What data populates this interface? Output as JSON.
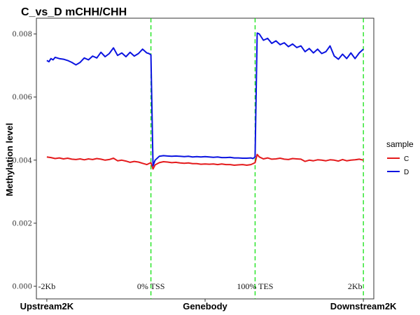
{
  "chart_data": {
    "type": "line",
    "title": "C_vs_D  mCHH/CHH",
    "ylabel": "Methylation level",
    "xlabel": "",
    "ylim": [
      -0.0004,
      0.0085
    ],
    "xlim": [
      -5,
      157
    ],
    "yticks": [
      "0.000",
      "0.002",
      "0.004",
      "0.006",
      "0.008"
    ],
    "ytick_values": [
      0,
      0.002,
      0.004,
      0.006,
      0.008
    ],
    "region_labels": [
      {
        "text": "Upstream2K",
        "x": 0
      },
      {
        "text": "Genebody",
        "x": 76
      },
      {
        "text": "Downstream2K",
        "x": 152
      }
    ],
    "position_labels": [
      {
        "text": "-2Kb",
        "x": 0
      },
      {
        "text": "0% TSS",
        "x": 50
      },
      {
        "text": "100% TES",
        "x": 100
      },
      {
        "text": "2Kb",
        "x": 148
      }
    ],
    "vlines_x": [
      50,
      100,
      152
    ],
    "vline_color": "#00e000",
    "legend": {
      "title": "sample",
      "placement": "right"
    },
    "series": [
      {
        "name": "C",
        "color": "#e41a1c",
        "x": [
          0,
          2,
          4,
          6,
          8,
          10,
          12,
          14,
          16,
          18,
          20,
          22,
          24,
          26,
          28,
          30,
          32,
          34,
          36,
          38,
          40,
          42,
          44,
          46,
          48,
          50,
          51,
          52,
          54,
          56,
          58,
          60,
          62,
          64,
          66,
          68,
          70,
          72,
          74,
          76,
          78,
          80,
          82,
          84,
          86,
          88,
          90,
          92,
          94,
          96,
          98,
          100,
          101,
          102,
          104,
          106,
          108,
          110,
          112,
          114,
          116,
          118,
          120,
          122,
          124,
          126,
          128,
          130,
          132,
          134,
          136,
          138,
          140,
          142,
          144,
          146,
          148,
          150,
          152
        ],
        "values": [
          0.0041,
          0.00408,
          0.00405,
          0.00407,
          0.00404,
          0.00406,
          0.00403,
          0.00402,
          0.00404,
          0.00401,
          0.00404,
          0.00402,
          0.00405,
          0.00403,
          0.004,
          0.00402,
          0.00406,
          0.00398,
          0.004,
          0.00397,
          0.00393,
          0.00396,
          0.00394,
          0.0039,
          0.00386,
          0.00392,
          0.00372,
          0.00385,
          0.00392,
          0.00395,
          0.00394,
          0.00392,
          0.00393,
          0.00391,
          0.0039,
          0.00391,
          0.00389,
          0.00389,
          0.00387,
          0.00388,
          0.00387,
          0.00388,
          0.00386,
          0.00388,
          0.00386,
          0.00386,
          0.00384,
          0.00385,
          0.00386,
          0.00384,
          0.00386,
          0.00392,
          0.00418,
          0.0041,
          0.00404,
          0.00407,
          0.00403,
          0.00404,
          0.00406,
          0.00403,
          0.00402,
          0.00405,
          0.00404,
          0.00403,
          0.00396,
          0.004,
          0.00398,
          0.00401,
          0.004,
          0.00398,
          0.00401,
          0.004,
          0.00397,
          0.00402,
          0.00398,
          0.004,
          0.00401,
          0.00403,
          0.004
        ]
      },
      {
        "name": "D",
        "color": "#0a13e0",
        "x": [
          0,
          1,
          2,
          3,
          4,
          6,
          8,
          10,
          12,
          14,
          16,
          18,
          20,
          22,
          24,
          26,
          28,
          30,
          32,
          34,
          36,
          38,
          40,
          42,
          44,
          46,
          48,
          49,
          50,
          51,
          52,
          54,
          56,
          58,
          60,
          62,
          64,
          66,
          68,
          70,
          72,
          74,
          76,
          78,
          80,
          82,
          84,
          86,
          88,
          90,
          92,
          94,
          96,
          98,
          99,
          100,
          101,
          102,
          104,
          106,
          108,
          110,
          112,
          114,
          116,
          118,
          120,
          122,
          124,
          126,
          128,
          130,
          132,
          134,
          136,
          138,
          140,
          142,
          144,
          146,
          148,
          150,
          152
        ],
        "values": [
          0.00716,
          0.00712,
          0.00722,
          0.00718,
          0.00726,
          0.00722,
          0.0072,
          0.00716,
          0.0071,
          0.00702,
          0.0071,
          0.00724,
          0.00718,
          0.0073,
          0.00724,
          0.00742,
          0.00728,
          0.00738,
          0.00756,
          0.00732,
          0.0074,
          0.00728,
          0.00742,
          0.0073,
          0.00738,
          0.00752,
          0.0074,
          0.00738,
          0.00734,
          0.00382,
          0.004,
          0.00412,
          0.00414,
          0.00413,
          0.00412,
          0.00413,
          0.00412,
          0.00411,
          0.00412,
          0.0041,
          0.00411,
          0.0041,
          0.00411,
          0.0041,
          0.00409,
          0.0041,
          0.00408,
          0.00408,
          0.00409,
          0.00407,
          0.00407,
          0.00406,
          0.00406,
          0.00407,
          0.00405,
          0.0041,
          0.00803,
          0.008,
          0.0078,
          0.00786,
          0.0077,
          0.00778,
          0.00766,
          0.00772,
          0.0076,
          0.00768,
          0.00757,
          0.00762,
          0.00744,
          0.00754,
          0.0074,
          0.00752,
          0.00738,
          0.00744,
          0.00762,
          0.0073,
          0.0072,
          0.00736,
          0.00722,
          0.0074,
          0.00722,
          0.0074,
          0.00752
        ]
      }
    ]
  }
}
